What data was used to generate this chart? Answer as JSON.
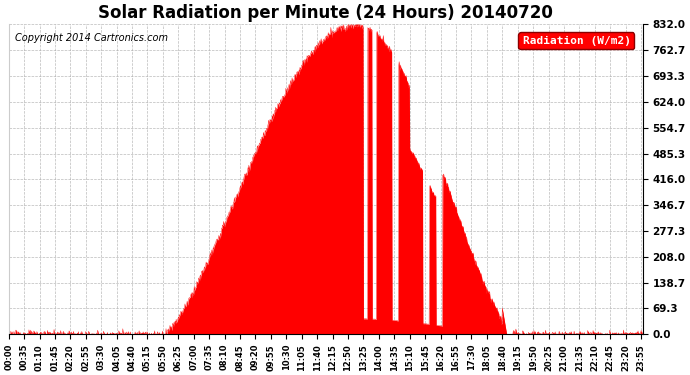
{
  "title": "Solar Radiation per Minute (24 Hours) 20140720",
  "copyright": "Copyright 2014 Cartronics.com",
  "legend_label": "Radiation (W/m2)",
  "background_color": "#ffffff",
  "fill_color": "#ff0000",
  "line_color": "#ff0000",
  "grid_color": "#aaaaaa",
  "dashed_zero_color": "#ff0000",
  "yticks": [
    0.0,
    69.3,
    138.7,
    208.0,
    277.3,
    346.7,
    416.0,
    485.3,
    554.7,
    624.0,
    693.3,
    762.7,
    832.0
  ],
  "ymax": 832.0,
  "ymin": 0.0,
  "xtick_interval_minutes": 35,
  "total_minutes": 1440,
  "title_fontsize": 12,
  "axis_fontsize": 7.5,
  "legend_fontsize": 8,
  "copyright_fontsize": 7
}
